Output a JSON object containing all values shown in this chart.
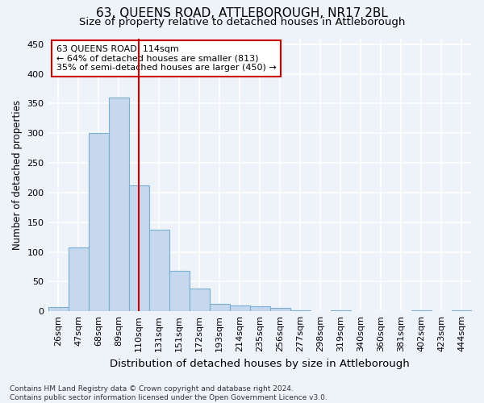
{
  "title1": "63, QUEENS ROAD, ATTLEBOROUGH, NR17 2BL",
  "title2": "Size of property relative to detached houses in Attleborough",
  "xlabel": "Distribution of detached houses by size in Attleborough",
  "ylabel": "Number of detached properties",
  "footnote": "Contains HM Land Registry data © Crown copyright and database right 2024.\nContains public sector information licensed under the Open Government Licence v3.0.",
  "bar_labels": [
    "26sqm",
    "47sqm",
    "68sqm",
    "89sqm",
    "110sqm",
    "131sqm",
    "151sqm",
    "172sqm",
    "193sqm",
    "214sqm",
    "235sqm",
    "256sqm",
    "277sqm",
    "298sqm",
    "319sqm",
    "340sqm",
    "360sqm",
    "381sqm",
    "402sqm",
    "423sqm",
    "444sqm"
  ],
  "bar_values": [
    7,
    108,
    300,
    360,
    212,
    137,
    68,
    38,
    13,
    10,
    9,
    6,
    2,
    0,
    2,
    0,
    0,
    0,
    2,
    0,
    2
  ],
  "bar_color": "#c5d8ee",
  "bar_edge_color": "#7aafd4",
  "vline_x_index": 4,
  "vline_color": "#cc0000",
  "annotation_text": "63 QUEENS ROAD: 114sqm\n← 64% of detached houses are smaller (813)\n35% of semi-detached houses are larger (450) →",
  "annotation_box_color": "#ffffff",
  "annotation_box_edge": "#cc0000",
  "ylim": [
    0,
    460
  ],
  "yticks": [
    0,
    50,
    100,
    150,
    200,
    250,
    300,
    350,
    400,
    450
  ],
  "background_color": "#eef2f9",
  "grid_color": "#ffffff",
  "title1_fontsize": 11,
  "title2_fontsize": 9.5,
  "xlabel_fontsize": 9.5,
  "ylabel_fontsize": 8.5,
  "tick_fontsize": 8,
  "annotation_fontsize": 8,
  "footnote_fontsize": 6.5
}
